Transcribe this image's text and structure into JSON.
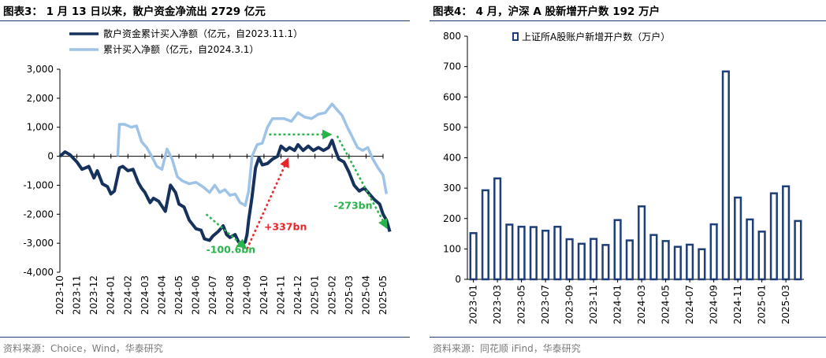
{
  "panels": [
    {
      "title": "图表3： 1 月 13 日以来，散户资金净流出 2729 亿元",
      "source": "资料来源：Choice，Wind，华泰研究"
    },
    {
      "title": "图表4： 4 月，沪深 A 股新增开户数 192 万户",
      "source": "资料来源：同花顺 iFind，华泰研究"
    }
  ],
  "colors": {
    "dark_line": "#16325c",
    "light_line": "#9ec3e6",
    "bar_stroke": "#1e3e7a",
    "green": "#2ab34b",
    "red": "#e8262a",
    "rule": "#1e3e6e"
  },
  "chart_data": [
    {
      "type": "line",
      "x_tick_labels": [
        "2023-10",
        "2023-11",
        "2023-12",
        "2024-01",
        "2024-02",
        "2024-03",
        "2024-04",
        "2024-05",
        "2024-06",
        "2024-07",
        "2024-08",
        "2024-09",
        "2024-10",
        "2024-11",
        "2024-12",
        "2025-01",
        "2025-02",
        "2025-03",
        "2025-04",
        "2025-05"
      ],
      "ylim": [
        -4000,
        3000
      ],
      "y_ticks": [
        "3,000",
        "2,000",
        "1,000",
        "0",
        "-1,000",
        "-2,000",
        "-3,000",
        "-4,000"
      ],
      "series": [
        {
          "name": "散户资金累计买入净额（亿元，自2023.11.1）",
          "color": "#16325c",
          "points": [
            [
              0,
              0
            ],
            [
              0.3,
              150
            ],
            [
              0.6,
              50
            ],
            [
              1,
              -200
            ],
            [
              1.3,
              -450
            ],
            [
              1.7,
              -350
            ],
            [
              2,
              -750
            ],
            [
              2.2,
              -500
            ],
            [
              2.5,
              -950
            ],
            [
              2.8,
              -1050
            ],
            [
              3,
              -1300
            ],
            [
              3.2,
              -1200
            ],
            [
              3.5,
              -400
            ],
            [
              3.7,
              -350
            ],
            [
              4,
              -500
            ],
            [
              4.3,
              -450
            ],
            [
              4.6,
              -900
            ],
            [
              4.8,
              -1100
            ],
            [
              5,
              -1250
            ],
            [
              5.3,
              -1600
            ],
            [
              5.5,
              -1450
            ],
            [
              5.8,
              -1550
            ],
            [
              6.2,
              -1900
            ],
            [
              6.5,
              -1000
            ],
            [
              6.8,
              -1250
            ],
            [
              7,
              -1650
            ],
            [
              7.3,
              -1750
            ],
            [
              7.6,
              -2200
            ],
            [
              8,
              -2500
            ],
            [
              8.3,
              -2550
            ],
            [
              8.5,
              -2850
            ],
            [
              8.8,
              -2900
            ],
            [
              9,
              -2750
            ],
            [
              9.3,
              -2600
            ],
            [
              9.6,
              -2400
            ],
            [
              9.8,
              -2700
            ],
            [
              10,
              -2800
            ],
            [
              10.3,
              -2700
            ],
            [
              10.5,
              -2950
            ],
            [
              10.7,
              -3050
            ],
            [
              10.9,
              -2950
            ],
            [
              11,
              -2700
            ],
            [
              11.1,
              -2200
            ],
            [
              11.3,
              -1400
            ],
            [
              11.5,
              -400
            ],
            [
              11.7,
              -50
            ],
            [
              11.9,
              -300
            ],
            [
              12.2,
              -250
            ],
            [
              12.5,
              -100
            ],
            [
              12.8,
              0
            ],
            [
              13,
              350
            ],
            [
              13.3,
              200
            ],
            [
              13.5,
              300
            ],
            [
              13.8,
              200
            ],
            [
              14,
              400
            ],
            [
              14.3,
              200
            ],
            [
              14.6,
              350
            ],
            [
              14.9,
              200
            ],
            [
              15.2,
              300
            ],
            [
              15.5,
              200
            ],
            [
              15.8,
              300
            ],
            [
              16,
              550
            ],
            [
              16.2,
              200
            ],
            [
              16.4,
              -100
            ],
            [
              16.7,
              -200
            ],
            [
              17,
              -550
            ],
            [
              17.3,
              -1000
            ],
            [
              17.6,
              -1200
            ],
            [
              17.9,
              -1100
            ],
            [
              18.2,
              -1300
            ],
            [
              18.5,
              -1500
            ],
            [
              18.8,
              -1650
            ],
            [
              19,
              -2000
            ],
            [
              19.2,
              -2200
            ],
            [
              19.4,
              -2600
            ]
          ]
        },
        {
          "name": "累计买入净额（亿元，自2024.3.1）",
          "color": "#9ec3e6",
          "points": [
            [
              3.4,
              0
            ],
            [
              3.5,
              1100
            ],
            [
              3.8,
              1100
            ],
            [
              4.2,
              1000
            ],
            [
              4.5,
              1050
            ],
            [
              4.8,
              500
            ],
            [
              5.1,
              300
            ],
            [
              5.4,
              0
            ],
            [
              5.7,
              -350
            ],
            [
              6,
              -450
            ],
            [
              6.3,
              250
            ],
            [
              6.6,
              -100
            ],
            [
              6.9,
              -700
            ],
            [
              7.2,
              -850
            ],
            [
              7.6,
              -950
            ],
            [
              8,
              -900
            ],
            [
              8.4,
              -1050
            ],
            [
              8.8,
              -1250
            ],
            [
              9.1,
              -1000
            ],
            [
              9.4,
              -1250
            ],
            [
              9.7,
              -1150
            ],
            [
              10,
              -1350
            ],
            [
              10.3,
              -1300
            ],
            [
              10.6,
              -1600
            ],
            [
              10.9,
              -1700
            ],
            [
              11.1,
              -1200
            ],
            [
              11.3,
              0
            ],
            [
              11.6,
              400
            ],
            [
              11.9,
              450
            ],
            [
              12.2,
              1000
            ],
            [
              12.5,
              1300
            ],
            [
              12.8,
              1300
            ],
            [
              13.2,
              1300
            ],
            [
              13.6,
              1200
            ],
            [
              14,
              1500
            ],
            [
              14.4,
              1350
            ],
            [
              14.8,
              1300
            ],
            [
              15.2,
              1450
            ],
            [
              15.6,
              1500
            ],
            [
              16,
              1800
            ],
            [
              16.3,
              1600
            ],
            [
              16.6,
              1400
            ],
            [
              16.9,
              1000
            ],
            [
              17.2,
              650
            ],
            [
              17.5,
              300
            ],
            [
              17.8,
              200
            ],
            [
              18.1,
              300
            ],
            [
              18.4,
              -100
            ],
            [
              18.7,
              -400
            ],
            [
              19,
              -650
            ],
            [
              19.2,
              -1300
            ]
          ]
        }
      ],
      "annotations": [
        {
          "text": "-100.6bn",
          "color": "#2ab34b"
        },
        {
          "text": "+337bn",
          "color": "#e8262a"
        },
        {
          "text": "-273bn",
          "color": "#2ab34b"
        }
      ]
    },
    {
      "type": "bar",
      "categories": [
        "2023-01",
        "2023-02",
        "2023-03",
        "2023-04",
        "2023-05",
        "2023-06",
        "2023-07",
        "2023-08",
        "2023-09",
        "2023-10",
        "2023-11",
        "2023-12",
        "2024-01",
        "2024-02",
        "2024-03",
        "2024-04",
        "2024-05",
        "2024-06",
        "2024-07",
        "2024-08",
        "2024-09",
        "2024-10",
        "2024-11",
        "2024-12",
        "2025-01",
        "2025-02",
        "2025-03",
        "2025-04"
      ],
      "x_tick_labels": [
        "2023-01",
        "2023-03",
        "2023-05",
        "2023-07",
        "2023-09",
        "2023-11",
        "2024-01",
        "2024-03",
        "2024-05",
        "2024-07",
        "2024-09",
        "2024-11",
        "2025-01",
        "2025-03"
      ],
      "series": [
        {
          "name": "上证所A股账户新增开户数（万户）",
          "values": [
            152,
            293,
            332,
            180,
            173,
            172,
            160,
            173,
            132,
            117,
            133,
            113,
            195,
            128,
            240,
            146,
            126,
            107,
            114,
            99,
            181,
            684,
            269,
            197,
            157,
            283,
            306,
            192
          ]
        }
      ],
      "ylim": [
        0,
        800
      ],
      "y_ticks": [
        "800",
        "700",
        "600",
        "500",
        "400",
        "300",
        "200",
        "100",
        "0"
      ]
    }
  ]
}
